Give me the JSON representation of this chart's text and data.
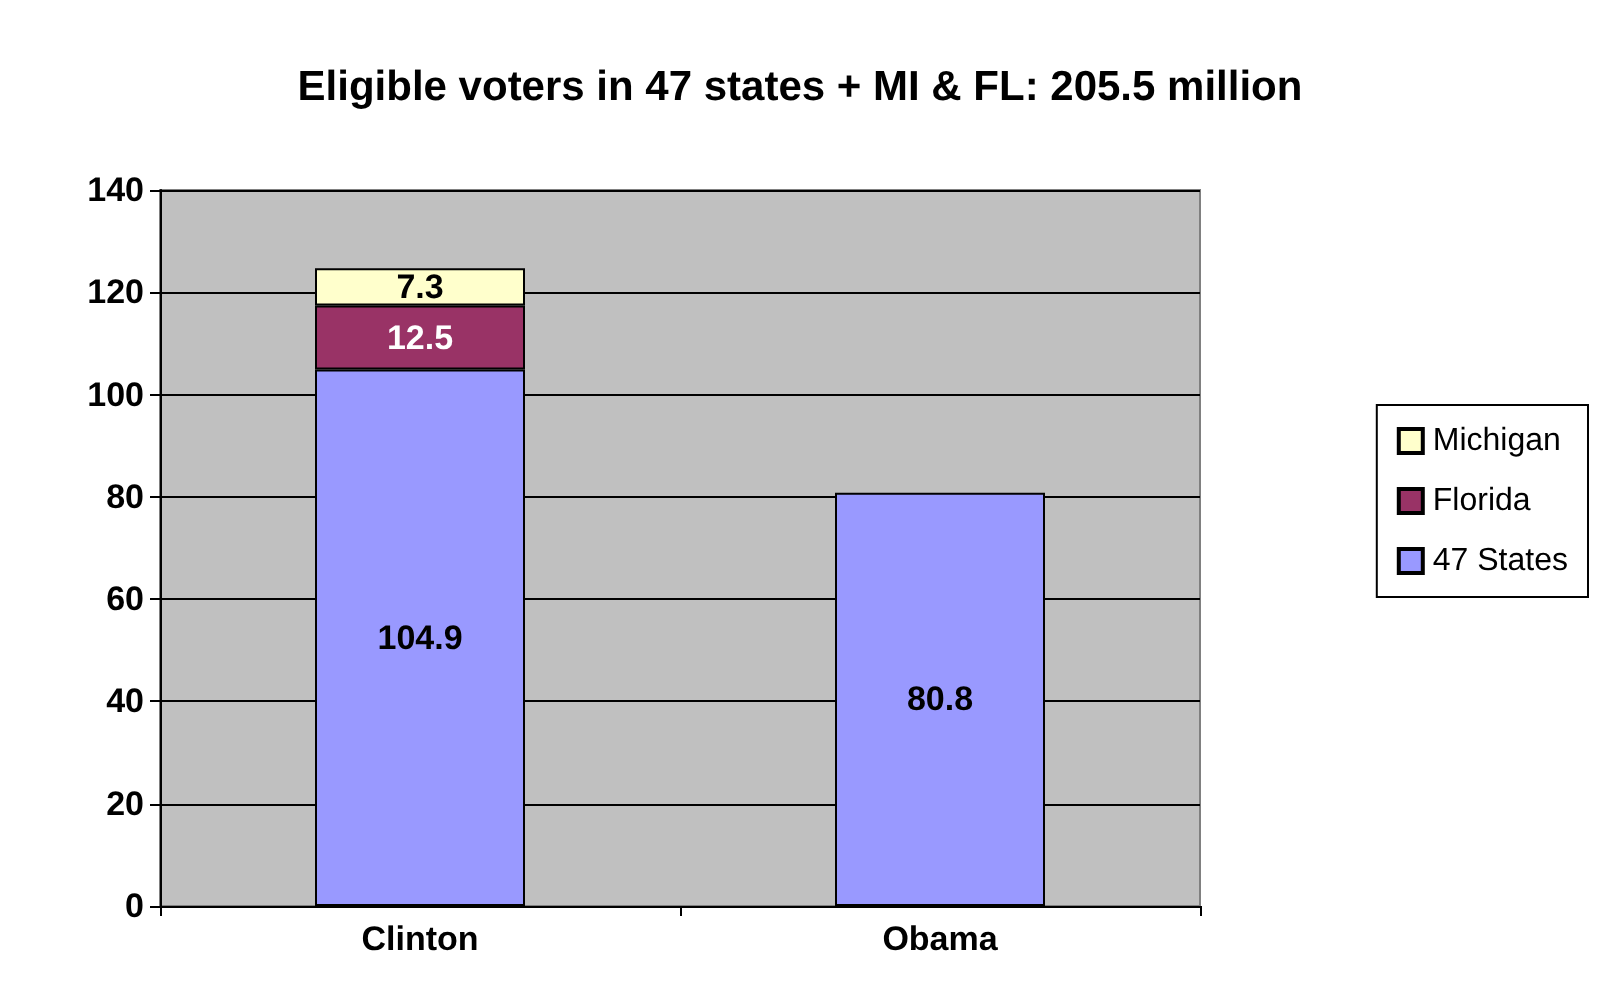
{
  "chart_data": {
    "type": "bar",
    "title": "Eligible voters in 47 states + MI & FL: 205.5 million",
    "categories": [
      "Clinton",
      "Obama"
    ],
    "stacked": true,
    "series": [
      {
        "name": "47 States",
        "color": "#9999ff",
        "values": [
          104.9,
          80.8
        ]
      },
      {
        "name": "Florida",
        "color": "#993366",
        "values": [
          12.5,
          null
        ]
      },
      {
        "name": "Michigan",
        "color": "#ffffcc",
        "values": [
          7.3,
          null
        ]
      }
    ],
    "ylim": [
      0,
      140
    ],
    "yticks": [
      0,
      20,
      40,
      60,
      80,
      100,
      120,
      140
    ],
    "grid": "y",
    "legend": "right",
    "data_labels": true
  }
}
